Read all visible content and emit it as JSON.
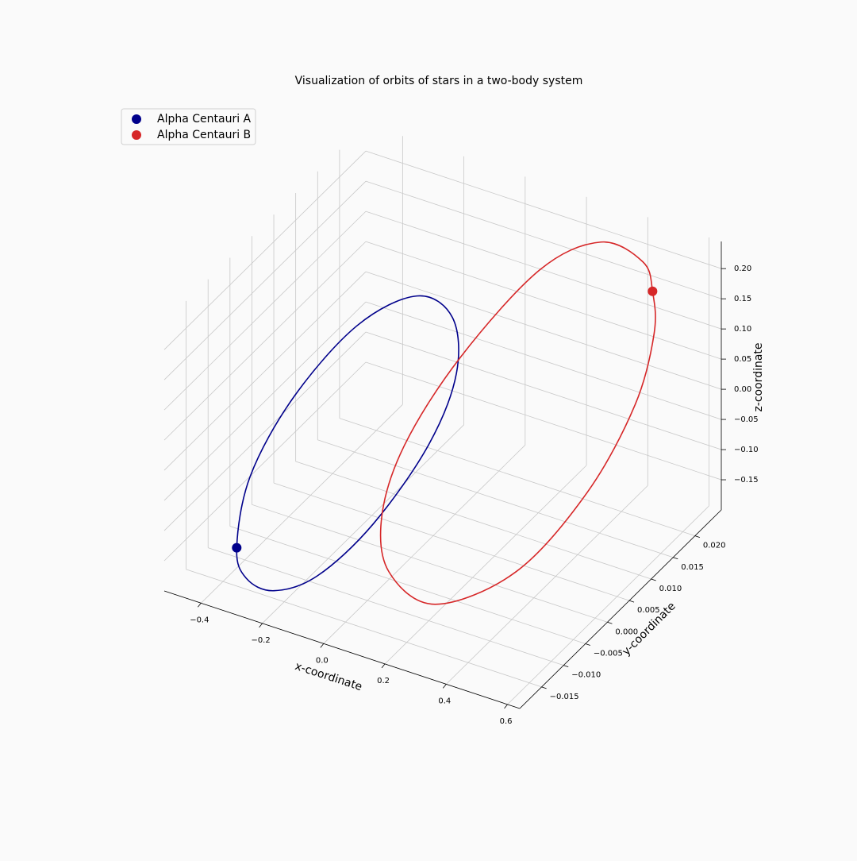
{
  "chart_data": {
    "type": "orbit3d",
    "title": "Visualization of orbits of stars in a two-body system",
    "xlabel": "x-coordinate",
    "ylabel": "y-coordinate",
    "zlabel": "z-coordinate",
    "xlim": [
      -0.52,
      0.64
    ],
    "ylim": [
      -0.02,
      0.026
    ],
    "zlim": [
      -0.2,
      0.245
    ],
    "xticks": [
      {
        "value": -0.4,
        "label": "−0.4"
      },
      {
        "value": -0.2,
        "label": "−0.2"
      },
      {
        "value": 0,
        "label": "0.0"
      },
      0.2,
      0.4,
      0.6
    ],
    "yticks": [
      {
        "value": -0.015,
        "label": "−0.015"
      },
      {
        "value": -0.01,
        "label": "−0.010"
      },
      {
        "value": -0.005,
        "label": "−0.005"
      },
      {
        "value": 0,
        "label": "0.000"
      },
      0.005,
      {
        "value": 0.01,
        "label": "0.010"
      },
      0.015,
      {
        "value": 0.02,
        "label": "0.020"
      }
    ],
    "zticks": [
      {
        "value": -0.15,
        "label": "−0.15"
      },
      {
        "value": -0.1,
        "label": "−0.10"
      },
      {
        "value": -0.05,
        "label": "−0.05"
      },
      {
        "value": 0,
        "label": "0.00"
      },
      0.05,
      {
        "value": 0.1,
        "label": "0.10"
      },
      0.15,
      {
        "value": 0.2,
        "label": "0.20"
      }
    ],
    "grid": true,
    "legend": "upper left",
    "series": [
      {
        "name": "Alpha Centauri A",
        "color": "#00008b",
        "x": [
          -0.3951,
          -0.3257,
          -0.2191,
          -0.0958,
          0.0202,
          0.1012,
          0.1018,
          0.0186,
          -0.1258,
          -0.282,
          -0.399,
          -0.4412
        ],
        "y": [
          -0.0122,
          -0.0149,
          -0.016,
          -0.0147,
          -0.0101,
          -0.0031,
          0.0032,
          0.0081,
          0.0101,
          0.0074,
          0.0011,
          -0.0059
        ],
        "z": [
          -0.1632,
          -0.1826,
          -0.1777,
          -0.1415,
          -0.0691,
          0.0259,
          0.0995,
          0.1426,
          0.1398,
          0.0839,
          -0.0091,
          -0.0977
        ]
      },
      {
        "name": "Alpha Centauri B",
        "color": "#d62728",
        "x": [
          0.5014,
          0.5681,
          0.6103,
          0.5826,
          0.4658,
          0.2494,
          0.0515,
          -0.0531,
          -0.0826,
          -0.029,
          0.1023,
          0.2615,
          0.4272
        ],
        "y": [
          0.02,
          0.0157,
          0.0084,
          -0.0006,
          -0.0087,
          -0.012,
          -0.0087,
          -0.003,
          0.0043,
          0.0133,
          0.0222,
          0.025,
          0.023
        ],
        "z": [
          0.1821,
          0.1543,
          0.0953,
          0.0096,
          -0.0836,
          -0.1501,
          -0.1531,
          -0.1191,
          -0.0579,
          0.032,
          0.1349,
          0.1876,
          0.1968
        ]
      }
    ]
  }
}
